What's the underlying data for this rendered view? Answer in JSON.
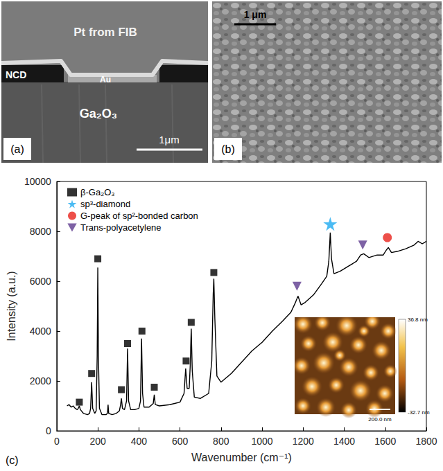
{
  "panels": [
    {
      "letter": "(a)",
      "layers": [
        "Pt from FIB",
        "NCD",
        "Au",
        "Ga₂O₃"
      ],
      "scale_bar": "1μm"
    },
    {
      "letter": "(b)",
      "scale_bar": "1 μm"
    }
  ],
  "chart_data": {
    "type": "line",
    "panel_label": "(c)",
    "xlabel": "Wavenumber (cm⁻¹)",
    "ylabel": "Intensity (a.u.)",
    "xlim": [
      0,
      1800
    ],
    "ylim": [
      0,
      10000
    ],
    "xticks": [
      0,
      200,
      400,
      600,
      800,
      1000,
      1200,
      1400,
      1600,
      1800
    ],
    "yticks": [
      0,
      2000,
      4000,
      6000,
      8000,
      10000
    ],
    "grid": false,
    "legend": "upper left",
    "series": [
      {
        "type": "line",
        "color": "#000000",
        "x": [
          50,
          60,
          70,
          80,
          90,
          100,
          105,
          110,
          115,
          130,
          150,
          160,
          165,
          170,
          175,
          185,
          192,
          197,
          200,
          203,
          208,
          220,
          240,
          247,
          250,
          253,
          270,
          290,
          305,
          310,
          315,
          320,
          330,
          340,
          345,
          350,
          360,
          380,
          400,
          408,
          413,
          418,
          425,
          450,
          470,
          475,
          480,
          500,
          550,
          600,
          620,
          628,
          635,
          645,
          650,
          655,
          660,
          670,
          700,
          740,
          755,
          762,
          765,
          770,
          780,
          800,
          850,
          900,
          950,
          1000,
          1050,
          1100,
          1140,
          1160,
          1175,
          1190,
          1210,
          1250,
          1290,
          1315,
          1325,
          1332,
          1338,
          1350,
          1380,
          1420,
          1460,
          1480,
          1495,
          1520,
          1560,
          1590,
          1605,
          1615,
          1630,
          1660,
          1700,
          1740,
          1760,
          1780,
          1800
        ],
        "values": [
          1000,
          1050,
          950,
          1000,
          900,
          850,
          900,
          1000,
          850,
          700,
          650,
          700,
          900,
          1950,
          900,
          700,
          800,
          3000,
          6550,
          3000,
          900,
          650,
          650,
          700,
          1050,
          700,
          650,
          700,
          800,
          1000,
          1300,
          900,
          850,
          1200,
          3300,
          1200,
          850,
          850,
          900,
          1200,
          3700,
          1500,
          950,
          950,
          1100,
          1450,
          1050,
          1000,
          1050,
          1150,
          1500,
          2500,
          1700,
          1700,
          2600,
          4100,
          2400,
          1350,
          1300,
          1500,
          2800,
          5500,
          6100,
          4500,
          2200,
          1950,
          2300,
          2750,
          3200,
          3550,
          4000,
          4400,
          4750,
          5100,
          5400,
          5050,
          5150,
          5450,
          5900,
          6200,
          6800,
          7950,
          6900,
          6300,
          6400,
          6600,
          6800,
          7050,
          7100,
          6950,
          7050,
          7050,
          7250,
          7350,
          7150,
          7200,
          7300,
          7450,
          7600,
          7500,
          7600
        ]
      },
      {
        "name": "β-Ga₂O₃",
        "type": "scatter",
        "marker": "square",
        "color": "#000000",
        "x": [
          110,
          170,
          200,
          315,
          345,
          415,
          475,
          630,
          655,
          765
        ],
        "values": [
          1150,
          2300,
          6900,
          1650,
          3500,
          4000,
          1750,
          2800,
          4350,
          6350
        ]
      },
      {
        "name": "sp³-diamond",
        "type": "scatter",
        "marker": "star",
        "color": "#1eaaf0",
        "x": [
          1332
        ],
        "values": [
          8300
        ]
      },
      {
        "name": "G-peak of sp²-bonded carbon",
        "type": "scatter",
        "marker": "circle",
        "color": "#e8231b",
        "x": [
          1610
        ],
        "values": [
          7750
        ]
      },
      {
        "name": "Trans-polyacetylene",
        "type": "scatter",
        "marker": "triangle_down",
        "color": "#5e3b8f",
        "x": [
          1170,
          1490
        ],
        "values": [
          5800,
          7450
        ]
      }
    ],
    "inset": {
      "colorbar": {
        "range": [
          -32.7,
          36.8
        ],
        "ticks": [
          {
            "value": 36.8,
            "label": "36.8 nm"
          },
          {
            "value": -32.7,
            "label": "-32.7 nm"
          }
        ]
      },
      "scale_bar": "200.0 nm"
    }
  }
}
